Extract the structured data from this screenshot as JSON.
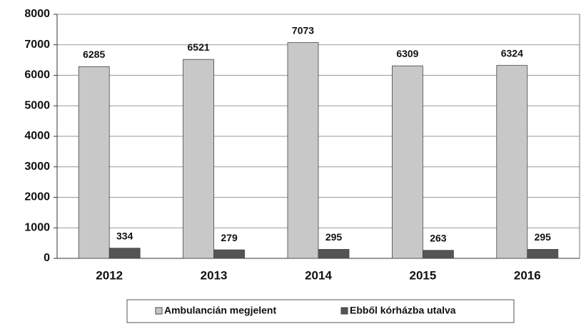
{
  "chart_data": {
    "type": "bar",
    "categories": [
      "2012",
      "2013",
      "2014",
      "2015",
      "2016"
    ],
    "series": [
      {
        "name": "Ambulancián megjelent",
        "color": "#c8c8c8",
        "values": [
          6285,
          6521,
          7073,
          6309,
          6324
        ]
      },
      {
        "name": "Ebből kórházba utalva",
        "color": "#555555",
        "values": [
          334,
          279,
          295,
          263,
          295
        ]
      }
    ],
    "ylim": [
      0,
      8000
    ],
    "yticks": [
      0,
      1000,
      2000,
      3000,
      4000,
      5000,
      6000,
      7000,
      8000
    ],
    "grid": true,
    "legend": "bottom"
  }
}
